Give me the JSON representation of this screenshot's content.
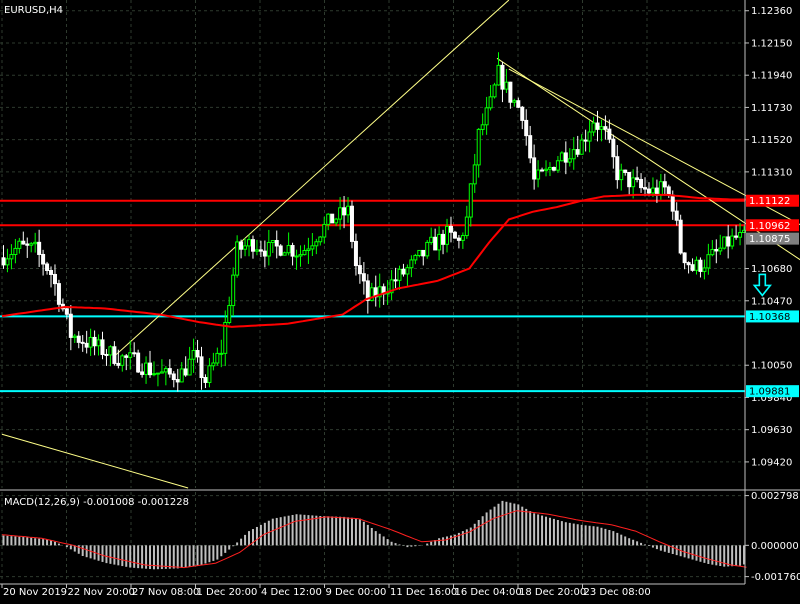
{
  "colors": {
    "background": "#000000",
    "grid": "#2e3a2e",
    "bull": "#00ff00",
    "bear": "#ffffff",
    "ma": "#ff0000",
    "resistance": "#ff0000",
    "support": "#00ffff",
    "trendline": "#ffff88",
    "hist": "#c0c0c0",
    "signal": "#ff2020",
    "current_price_bg": "#808080"
  },
  "symbol_label": "EURUSD,H4",
  "macd_label": "MACD(12,26,9) -0.001008 -0.001228",
  "arrow_icon": "down-arrow-icon",
  "chart_data": [
    {
      "type": "candlestick",
      "ylim": [
        1.0925,
        1.1243
      ],
      "y_ticks": [
        "1.12360",
        "1.12150",
        "1.11940",
        "1.11730",
        "1.11520",
        "1.11310",
        "1.10680",
        "1.10470",
        "1.10050",
        "1.09840",
        "1.09630",
        "1.09420"
      ],
      "x_ticks": [
        "20 Nov 2019",
        "22 Nov 20:00",
        "27 Nov 08:00",
        "1 Dec 20:00",
        "4 Dec 12:00",
        "9 Dec 00:00",
        "11 Dec 16:00",
        "16 Dec 04:00",
        "18 Dec 20:00",
        "23 Dec 08:00"
      ],
      "levels": [
        {
          "price": 1.11122,
          "label": "1.11122",
          "kind": "resistance"
        },
        {
          "price": 1.10962,
          "label": "1.10962",
          "kind": "resistance"
        },
        {
          "price": 1.10875,
          "label": "1.10875",
          "kind": "current"
        },
        {
          "price": 1.10368,
          "label": "1.10368",
          "kind": "support"
        },
        {
          "price": 1.09881,
          "label": "1.09881",
          "kind": "support"
        }
      ],
      "price_path": [
        [
          0,
          1.1075
        ],
        [
          5,
          1.1082
        ],
        [
          9,
          1.108
        ],
        [
          13,
          1.1065
        ],
        [
          15,
          1.105
        ],
        [
          18,
          1.1025
        ],
        [
          22,
          1.102
        ],
        [
          26,
          1.1015
        ],
        [
          30,
          1.101
        ],
        [
          34,
          1.1008
        ],
        [
          38,
          1.1002
        ],
        [
          42,
          1.0998
        ],
        [
          46,
          1.1
        ],
        [
          49,
          1.101
        ],
        [
          52,
          1.0995
        ],
        [
          56,
          1.1015
        ],
        [
          60,
          1.108
        ],
        [
          64,
          1.1085
        ],
        [
          68,
          1.108
        ],
        [
          72,
          1.1083
        ],
        [
          76,
          1.1078
        ],
        [
          80,
          1.109
        ],
        [
          84,
          1.11
        ],
        [
          88,
          1.1105
        ],
        [
          90,
          1.107
        ],
        [
          93,
          1.1048
        ],
        [
          97,
          1.1055
        ],
        [
          101,
          1.1063
        ],
        [
          105,
          1.1072
        ],
        [
          109,
          1.1083
        ],
        [
          113,
          1.109
        ],
        [
          116,
          1.1085
        ],
        [
          118,
          1.11
        ],
        [
          121,
          1.1155
        ],
        [
          124,
          1.1175
        ],
        [
          126,
          1.1195
        ],
        [
          129,
          1.118
        ],
        [
          132,
          1.117
        ],
        [
          135,
          1.1125
        ],
        [
          138,
          1.113
        ],
        [
          141,
          1.114
        ],
        [
          144,
          1.1145
        ],
        [
          147,
          1.115
        ],
        [
          150,
          1.1165
        ],
        [
          153,
          1.1155
        ],
        [
          156,
          1.113
        ],
        [
          159,
          1.1125
        ],
        [
          162,
          1.112
        ],
        [
          165,
          1.1118
        ],
        [
          168,
          1.112
        ],
        [
          170,
          1.111
        ],
        [
          172,
          1.108
        ],
        [
          175,
          1.1068
        ],
        [
          178,
          1.1072
        ],
        [
          181,
          1.1078
        ],
        [
          184,
          1.1085
        ],
        [
          186,
          1.1088
        ],
        [
          188,
          1.10875
        ]
      ],
      "ma_path": [
        [
          0,
          1.1037
        ],
        [
          8,
          1.104
        ],
        [
          16,
          1.1043
        ],
        [
          26,
          1.1042
        ],
        [
          40,
          1.1038
        ],
        [
          50,
          1.1033
        ],
        [
          58,
          1.103
        ],
        [
          72,
          1.1032
        ],
        [
          86,
          1.1038
        ],
        [
          92,
          1.1048
        ],
        [
          100,
          1.1055
        ],
        [
          110,
          1.106
        ],
        [
          118,
          1.1068
        ],
        [
          123,
          1.1085
        ],
        [
          128,
          1.11
        ],
        [
          134,
          1.1105
        ],
        [
          140,
          1.1108
        ],
        [
          146,
          1.1112
        ],
        [
          152,
          1.1115
        ],
        [
          160,
          1.1116
        ],
        [
          168,
          1.1116
        ],
        [
          176,
          1.1114
        ],
        [
          184,
          1.1113
        ],
        [
          188,
          1.1113
        ]
      ],
      "trendlines": [
        {
          "from": [
            28,
            1.101
          ],
          "to": [
            128,
            1.1243
          ]
        },
        {
          "from": [
            125,
            1.1205
          ],
          "to": [
            202,
            1.1073
          ]
        },
        {
          "from": [
            128,
            1.1198
          ],
          "to": [
            210,
            1.1085
          ]
        },
        {
          "from": [
            0,
            1.096
          ],
          "to": [
            47,
            1.0925
          ]
        }
      ],
      "arrow_at": [
        192,
        1.1057
      ]
    },
    {
      "type": "histogram",
      "ylim": [
        -0.00195,
        0.003
      ],
      "y_ticks": [
        "0.002798",
        "0.000000",
        "-0.001760"
      ],
      "histogram": [
        [
          0,
          0.00055
        ],
        [
          6,
          0.00045
        ],
        [
          12,
          0.0003
        ],
        [
          16,
          -0.0001
        ],
        [
          20,
          -0.0006
        ],
        [
          26,
          -0.001
        ],
        [
          32,
          -0.00125
        ],
        [
          38,
          -0.00135
        ],
        [
          44,
          -0.0013
        ],
        [
          50,
          -0.0011
        ],
        [
          54,
          -0.0008
        ],
        [
          58,
          -5e-05
        ],
        [
          62,
          0.0008
        ],
        [
          68,
          0.0015
        ],
        [
          74,
          0.00175
        ],
        [
          80,
          0.00165
        ],
        [
          86,
          0.0016
        ],
        [
          90,
          0.0015
        ],
        [
          94,
          0.0008
        ],
        [
          98,
          0.0002
        ],
        [
          102,
          -0.0001
        ],
        [
          106,
          0.0
        ],
        [
          110,
          0.0004
        ],
        [
          114,
          0.0006
        ],
        [
          118,
          0.001
        ],
        [
          122,
          0.00185
        ],
        [
          126,
          0.0025
        ],
        [
          130,
          0.0023
        ],
        [
          134,
          0.0018
        ],
        [
          138,
          0.00155
        ],
        [
          142,
          0.0013
        ],
        [
          146,
          0.00115
        ],
        [
          150,
          0.00105
        ],
        [
          154,
          0.0008
        ],
        [
          158,
          0.0004
        ],
        [
          162,
          5e-05
        ],
        [
          166,
          -0.0003
        ],
        [
          170,
          -0.00055
        ],
        [
          174,
          -0.0008
        ],
        [
          178,
          -0.00105
        ],
        [
          182,
          -0.0012
        ],
        [
          186,
          -0.00115
        ],
        [
          188,
          -0.001
        ]
      ],
      "signal": [
        [
          0,
          0.0006
        ],
        [
          10,
          0.0004
        ],
        [
          18,
          0.0
        ],
        [
          26,
          -0.0006
        ],
        [
          36,
          -0.0011
        ],
        [
          46,
          -0.00125
        ],
        [
          54,
          -0.001
        ],
        [
          60,
          -0.0004
        ],
        [
          66,
          0.0006
        ],
        [
          74,
          0.00135
        ],
        [
          82,
          0.0016
        ],
        [
          90,
          0.0015
        ],
        [
          98,
          0.0009
        ],
        [
          106,
          0.0002
        ],
        [
          112,
          0.0003
        ],
        [
          118,
          0.00075
        ],
        [
          124,
          0.0015
        ],
        [
          130,
          0.00195
        ],
        [
          138,
          0.00175
        ],
        [
          146,
          0.0014
        ],
        [
          154,
          0.00115
        ],
        [
          160,
          0.0008
        ],
        [
          166,
          0.0002
        ],
        [
          172,
          -0.00035
        ],
        [
          178,
          -0.00075
        ],
        [
          184,
          -0.0011
        ],
        [
          188,
          -0.00123
        ]
      ]
    }
  ]
}
